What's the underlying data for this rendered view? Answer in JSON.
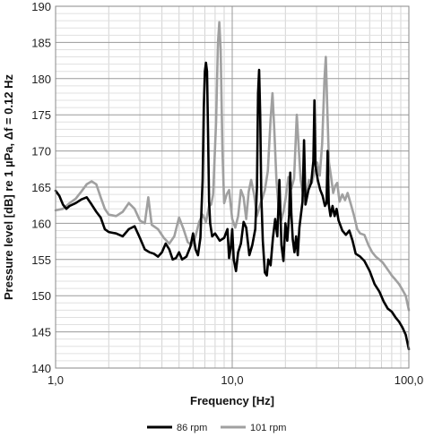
{
  "chart_data": {
    "type": "line",
    "xlabel": "Frequency [Hz]",
    "ylabel": "Pressure level [dB] re 1 µPa, Δf = 0.12 Hz",
    "xscale": "log",
    "xlim": [
      1,
      100
    ],
    "ylim": [
      140,
      190
    ],
    "x_ticks": [
      "1,0",
      "10,0",
      "100,0"
    ],
    "y_ticks": [
      "140",
      "145",
      "150",
      "155",
      "160",
      "165",
      "170",
      "175",
      "180",
      "185",
      "190"
    ],
    "grid": "major and minor",
    "legend_position": "bottom",
    "series": [
      {
        "name": "86 rpm",
        "color": "#000000",
        "points": [
          [
            1.0,
            164.5
          ],
          [
            1.05,
            163.8
          ],
          [
            1.1,
            162.6
          ],
          [
            1.15,
            162.0
          ],
          [
            1.2,
            162.4
          ],
          [
            1.3,
            162.8
          ],
          [
            1.4,
            163.3
          ],
          [
            1.5,
            163.6
          ],
          [
            1.6,
            162.6
          ],
          [
            1.7,
            161.6
          ],
          [
            1.8,
            160.8
          ],
          [
            1.9,
            159.2
          ],
          [
            2.0,
            158.8
          ],
          [
            2.2,
            158.6
          ],
          [
            2.4,
            158.2
          ],
          [
            2.6,
            159.2
          ],
          [
            2.8,
            159.6
          ],
          [
            3.0,
            158.0
          ],
          [
            3.2,
            156.4
          ],
          [
            3.4,
            156.0
          ],
          [
            3.6,
            155.8
          ],
          [
            3.8,
            155.4
          ],
          [
            4.0,
            156.0
          ],
          [
            4.2,
            157.2
          ],
          [
            4.4,
            156.4
          ],
          [
            4.6,
            155.0
          ],
          [
            4.8,
            155.2
          ],
          [
            5.0,
            156.0
          ],
          [
            5.2,
            155.0
          ],
          [
            5.5,
            155.4
          ],
          [
            5.8,
            156.8
          ],
          [
            6.0,
            158.6
          ],
          [
            6.2,
            156.4
          ],
          [
            6.4,
            155.6
          ],
          [
            6.6,
            158.0
          ],
          [
            6.8,
            166.0
          ],
          [
            6.9,
            176.0
          ],
          [
            7.0,
            181.0
          ],
          [
            7.1,
            182.2
          ],
          [
            7.2,
            181.0
          ],
          [
            7.3,
            172.0
          ],
          [
            7.4,
            163.0
          ],
          [
            7.5,
            160.0
          ],
          [
            7.7,
            158.2
          ],
          [
            8.0,
            158.6
          ],
          [
            8.5,
            157.6
          ],
          [
            9.0,
            158.0
          ],
          [
            9.4,
            159.2
          ],
          [
            9.6,
            155.2
          ],
          [
            9.8,
            156.6
          ],
          [
            10.0,
            159.2
          ],
          [
            10.2,
            155.0
          ],
          [
            10.5,
            153.4
          ],
          [
            10.8,
            156.0
          ],
          [
            11.2,
            157.2
          ],
          [
            11.6,
            160.2
          ],
          [
            12.0,
            159.4
          ],
          [
            12.5,
            155.6
          ],
          [
            13.0,
            157.0
          ],
          [
            13.5,
            159.2
          ],
          [
            13.8,
            165.0
          ],
          [
            14.0,
            178.0
          ],
          [
            14.2,
            181.2
          ],
          [
            14.4,
            175.0
          ],
          [
            14.6,
            164.0
          ],
          [
            14.9,
            157.6
          ],
          [
            15.3,
            153.2
          ],
          [
            15.7,
            152.8
          ],
          [
            16.0,
            155.0
          ],
          [
            16.5,
            154.2
          ],
          [
            17.0,
            158.0
          ],
          [
            17.5,
            160.6
          ],
          [
            18.0,
            158.2
          ],
          [
            18.5,
            166.0
          ],
          [
            19.0,
            157.0
          ],
          [
            19.5,
            154.8
          ],
          [
            20.0,
            160.0
          ],
          [
            20.5,
            157.6
          ],
          [
            21.0,
            161.2
          ],
          [
            21.3,
            167.0
          ],
          [
            21.6,
            161.4
          ],
          [
            22.0,
            157.8
          ],
          [
            22.5,
            156.0
          ],
          [
            23.0,
            158.2
          ],
          [
            23.5,
            155.6
          ],
          [
            24.0,
            159.4
          ],
          [
            25.0,
            163.0
          ],
          [
            25.5,
            171.5
          ],
          [
            26.0,
            162.6
          ],
          [
            27.0,
            164.6
          ],
          [
            28.0,
            165.6
          ],
          [
            28.8,
            168.6
          ],
          [
            29.2,
            177.0
          ],
          [
            29.6,
            168.0
          ],
          [
            30.5,
            166.0
          ],
          [
            31.5,
            164.6
          ],
          [
            32.5,
            163.8
          ],
          [
            33.5,
            162.4
          ],
          [
            34.2,
            162.8
          ],
          [
            34.7,
            170.0
          ],
          [
            35.2,
            162.6
          ],
          [
            36.0,
            161.0
          ],
          [
            37.0,
            162.4
          ],
          [
            38.0,
            161.0
          ],
          [
            39.0,
            162.0
          ],
          [
            40.0,
            160.4
          ],
          [
            42.0,
            159.0
          ],
          [
            44.0,
            158.4
          ],
          [
            46.0,
            159.0
          ],
          [
            48.0,
            157.6
          ],
          [
            50.0,
            155.8
          ],
          [
            53.0,
            155.4
          ],
          [
            56.0,
            154.8
          ],
          [
            60.0,
            153.4
          ],
          [
            64.0,
            151.6
          ],
          [
            68.0,
            150.6
          ],
          [
            72.0,
            149.2
          ],
          [
            76.0,
            148.2
          ],
          [
            80.0,
            147.8
          ],
          [
            84.0,
            147.0
          ],
          [
            88.0,
            146.4
          ],
          [
            92.0,
            145.6
          ],
          [
            96.0,
            144.6
          ],
          [
            100.0,
            142.6
          ]
        ]
      },
      {
        "name": "101 rpm",
        "color": "#a0a0a0",
        "points": [
          [
            1.0,
            161.8
          ],
          [
            1.1,
            162.0
          ],
          [
            1.2,
            162.8
          ],
          [
            1.3,
            163.4
          ],
          [
            1.4,
            164.4
          ],
          [
            1.5,
            165.4
          ],
          [
            1.6,
            165.8
          ],
          [
            1.7,
            165.4
          ],
          [
            1.8,
            163.6
          ],
          [
            1.9,
            162.0
          ],
          [
            2.0,
            161.2
          ],
          [
            2.2,
            161.0
          ],
          [
            2.4,
            161.6
          ],
          [
            2.6,
            162.8
          ],
          [
            2.8,
            162.0
          ],
          [
            3.0,
            160.4
          ],
          [
            3.2,
            160.0
          ],
          [
            3.35,
            163.6
          ],
          [
            3.5,
            159.8
          ],
          [
            3.8,
            159.2
          ],
          [
            4.1,
            158.0
          ],
          [
            4.4,
            157.2
          ],
          [
            4.7,
            158.2
          ],
          [
            5.0,
            160.8
          ],
          [
            5.3,
            159.2
          ],
          [
            5.6,
            157.4
          ],
          [
            5.9,
            157.0
          ],
          [
            6.2,
            158.2
          ],
          [
            6.5,
            160.2
          ],
          [
            6.8,
            161.2
          ],
          [
            7.1,
            160.2
          ],
          [
            7.4,
            162.4
          ],
          [
            7.6,
            162.6
          ],
          [
            7.8,
            164.0
          ],
          [
            8.1,
            174.0
          ],
          [
            8.3,
            185.0
          ],
          [
            8.45,
            187.8
          ],
          [
            8.6,
            184.0
          ],
          [
            8.8,
            170.0
          ],
          [
            9.0,
            162.8
          ],
          [
            9.3,
            164.0
          ],
          [
            9.6,
            164.6
          ],
          [
            10.0,
            160.6
          ],
          [
            10.4,
            159.4
          ],
          [
            10.8,
            161.0
          ],
          [
            11.2,
            164.6
          ],
          [
            11.6,
            163.6
          ],
          [
            12.0,
            160.6
          ],
          [
            12.4,
            164.4
          ],
          [
            12.8,
            166.0
          ],
          [
            13.3,
            164.0
          ],
          [
            13.8,
            161.0
          ],
          [
            14.3,
            162.4
          ],
          [
            14.8,
            163.4
          ],
          [
            15.3,
            164.6
          ],
          [
            15.9,
            167.2
          ],
          [
            16.5,
            174.4
          ],
          [
            16.9,
            178.0
          ],
          [
            17.3,
            173.0
          ],
          [
            17.8,
            166.0
          ],
          [
            18.3,
            162.2
          ],
          [
            18.9,
            160.4
          ],
          [
            19.5,
            161.6
          ],
          [
            20.0,
            163.2
          ],
          [
            20.8,
            166.4
          ],
          [
            21.6,
            164.8
          ],
          [
            22.4,
            166.2
          ],
          [
            23.2,
            175.0
          ],
          [
            23.8,
            170.4
          ],
          [
            24.4,
            166.0
          ],
          [
            25.2,
            164.0
          ],
          [
            26.2,
            163.6
          ],
          [
            27.2,
            166.0
          ],
          [
            28.2,
            165.6
          ],
          [
            29.2,
            167.0
          ],
          [
            30.3,
            168.4
          ],
          [
            31.3,
            166.6
          ],
          [
            32.3,
            171.0
          ],
          [
            33.3,
            180.0
          ],
          [
            33.9,
            183.0
          ],
          [
            34.5,
            176.0
          ],
          [
            35.3,
            168.4
          ],
          [
            36.3,
            166.4
          ],
          [
            37.3,
            164.2
          ],
          [
            38.3,
            165.2
          ],
          [
            39.3,
            165.6
          ],
          [
            40.5,
            163.0
          ],
          [
            42.0,
            164.0
          ],
          [
            43.5,
            163.2
          ],
          [
            45.0,
            164.2
          ],
          [
            47.0,
            162.6
          ],
          [
            49.0,
            161.0
          ],
          [
            51.0,
            159.2
          ],
          [
            53.0,
            158.6
          ],
          [
            56.0,
            158.4
          ],
          [
            59.0,
            157.0
          ],
          [
            62.0,
            156.0
          ],
          [
            65.0,
            155.4
          ],
          [
            68.0,
            155.0
          ],
          [
            71.0,
            154.6
          ],
          [
            74.0,
            154.0
          ],
          [
            77.0,
            153.4
          ],
          [
            80.0,
            152.8
          ],
          [
            84.0,
            152.2
          ],
          [
            88.0,
            151.6
          ],
          [
            92.0,
            150.8
          ],
          [
            96.0,
            150.0
          ],
          [
            100.0,
            148.0
          ]
        ]
      }
    ]
  }
}
